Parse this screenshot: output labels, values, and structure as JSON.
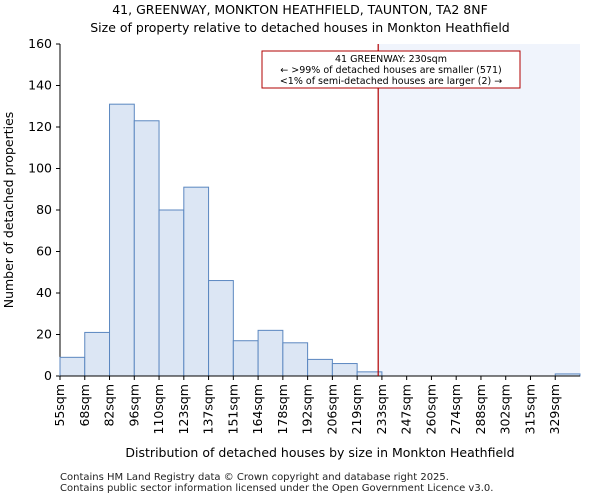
{
  "chart_data": {
    "type": "bar",
    "title": "41, GREENWAY, MONKTON HEATHFIELD, TAUNTON, TA2 8NF",
    "subtitle": "Size of property relative to detached houses in Monkton Heathfield",
    "xlabel": "Distribution of detached houses by size in Monkton Heathfield",
    "ylabel": "Number of detached properties",
    "ylim": [
      0,
      160
    ],
    "yticks": [
      "0",
      "20",
      "40",
      "60",
      "80",
      "100",
      "120",
      "140",
      "160"
    ],
    "categories": [
      "55sqm",
      "68sqm",
      "82sqm",
      "96sqm",
      "110sqm",
      "123sqm",
      "137sqm",
      "151sqm",
      "164sqm",
      "178sqm",
      "192sqm",
      "206sqm",
      "219sqm",
      "233sqm",
      "247sqm",
      "260sqm",
      "274sqm",
      "288sqm",
      "302sqm",
      "315sqm",
      "329sqm"
    ],
    "values": [
      9,
      21,
      131,
      123,
      80,
      91,
      46,
      17,
      22,
      16,
      8,
      6,
      2,
      0,
      0,
      0,
      0,
      0,
      0,
      0,
      1
    ],
    "marker_bin": 12.85,
    "annotation": [
      "41 GREENWAY: 230sqm",
      "← >99% of detached houses are smaller (571)",
      "<1% of semi-detached houses are larger (2) →"
    ],
    "colors": {
      "bar_fill": "#dce6f4",
      "bar_edge": "#5b87c0",
      "marker": "#b20000",
      "shade": "#f0f4fc"
    }
  },
  "footer": {
    "line1": "Contains HM Land Registry data © Crown copyright and database right 2025.",
    "line2": "Contains public sector information licensed under the Open Government Licence v3.0."
  }
}
